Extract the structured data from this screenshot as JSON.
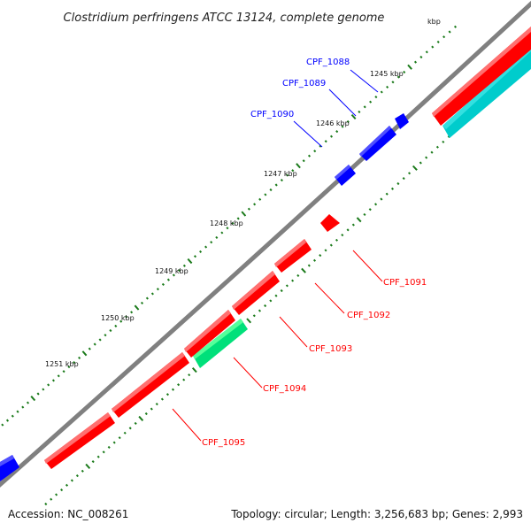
{
  "title": "Clostridium perfringens ATCC 13124, complete genome",
  "accession": "Accession: NC_008261",
  "topology": "Topology: circular; Length: 3,256,683 bp; Genes: 2,993",
  "tick_unit_partial": "kbp",
  "ticks": [
    "1245 kbp",
    "1246 kbp",
    "1247 kbp",
    "1248 kbp",
    "1249 kbp",
    "1250 kbp",
    "1251 kbp"
  ],
  "colors": {
    "backbone": "#808080",
    "forward_gene": "#0000ff",
    "reverse_gene": "#ff0000",
    "cyan_feature": "#00cccc",
    "green_feature": "#00e07a",
    "tick_mark": "#1a7a1a"
  },
  "genes": [
    {
      "label": "CPF_1088",
      "strand": "forward"
    },
    {
      "label": "CPF_1089",
      "strand": "forward"
    },
    {
      "label": "CPF_1090",
      "strand": "forward"
    },
    {
      "label": "CPF_1091",
      "strand": "reverse"
    },
    {
      "label": "CPF_1092",
      "strand": "reverse"
    },
    {
      "label": "CPF_1093",
      "strand": "reverse"
    },
    {
      "label": "CPF_1094",
      "strand": "reverse"
    },
    {
      "label": "CPF_1095",
      "strand": "reverse"
    }
  ]
}
